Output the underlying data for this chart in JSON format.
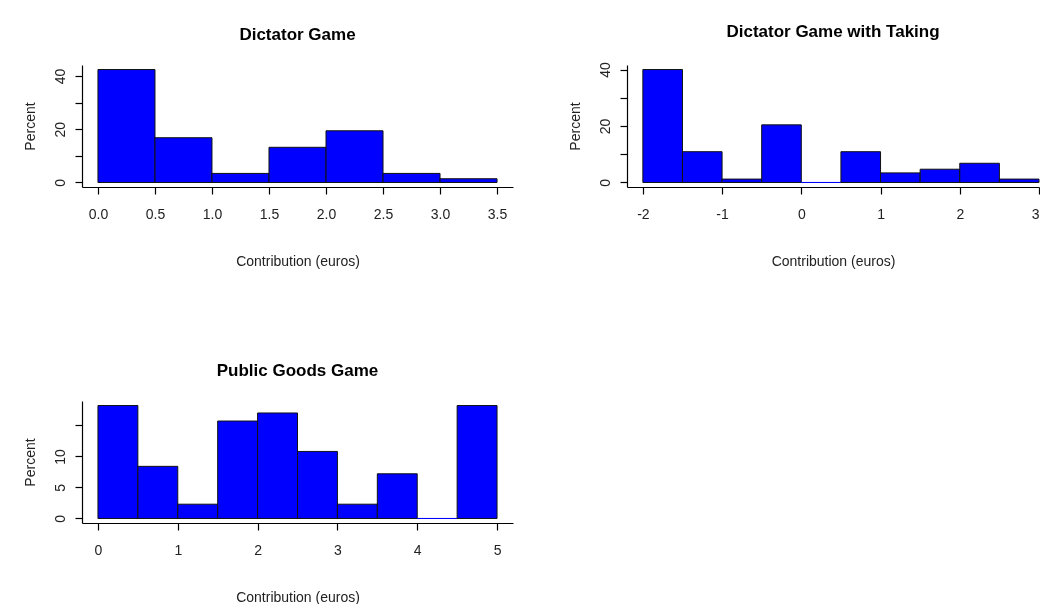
{
  "chart_data": [
    {
      "type": "histogram",
      "title": "Dictator Game",
      "xlabel": "Contribution (euros)",
      "ylabel": "Percent",
      "bins": [
        0,
        0.5,
        1,
        1.5,
        2,
        2.5,
        3,
        3.5
      ],
      "values": [
        42.4,
        16.8,
        3.4,
        13.2,
        19.4,
        3.4,
        1.4
      ],
      "color": "#0000ff",
      "xlim": [
        -0.14,
        3.64
      ],
      "xticks": [
        {
          "value": 0,
          "label": "0.0"
        },
        0.5,
        {
          "value": 1,
          "label": "1.0"
        },
        1.5,
        {
          "value": 2,
          "label": "2.0"
        },
        2.5,
        {
          "value": 3,
          "label": "3.0"
        },
        3.5
      ],
      "ylim": [
        -1.7,
        44.1
      ],
      "yticks": [
        0,
        {
          "value": 10,
          "label": null
        },
        20,
        {
          "value": 30,
          "label": null
        },
        40
      ],
      "grid": false
    },
    {
      "type": "histogram",
      "title": "Dictator Game with Taking",
      "xlabel": "Contribution (euros)",
      "ylabel": "Percent",
      "bins": [
        -2,
        -1.5,
        -1,
        -0.5,
        0,
        0.5,
        1,
        1.5,
        2,
        2.5,
        3
      ],
      "values": [
        40,
        10.9,
        1.2,
        20.4,
        0,
        10.9,
        3.4,
        4.7,
        6.8,
        1.2
      ],
      "color": "#0000ff",
      "xlim": [
        -2.2,
        3
      ],
      "xticks": [
        -2,
        -1,
        0,
        1,
        2,
        3
      ],
      "ylim": [
        -1.6,
        41.6
      ],
      "yticks": [
        0,
        {
          "value": 10,
          "label": null
        },
        20,
        {
          "value": 30,
          "label": null
        },
        40
      ],
      "grid": false
    },
    {
      "type": "histogram",
      "title": "Public Goods Game",
      "xlabel": "Contribution (euros)",
      "ylabel": "Percent",
      "bins": [
        0,
        0.5,
        1,
        1.5,
        2,
        2.5,
        3,
        3.5,
        4,
        4.5,
        5
      ],
      "values": [
        18.2,
        8.4,
        2.3,
        15.7,
        17.0,
        10.8,
        2.3,
        7.2,
        0,
        18.2
      ],
      "color": "#0000ff",
      "xlim": [
        -0.2,
        5.2
      ],
      "xticks": [
        0,
        1,
        2,
        3,
        4,
        5
      ],
      "ylim": [
        -0.73,
        18.93
      ],
      "yticks": [
        0,
        5,
        10,
        {
          "value": 15,
          "label": null
        }
      ],
      "grid": false
    }
  ]
}
